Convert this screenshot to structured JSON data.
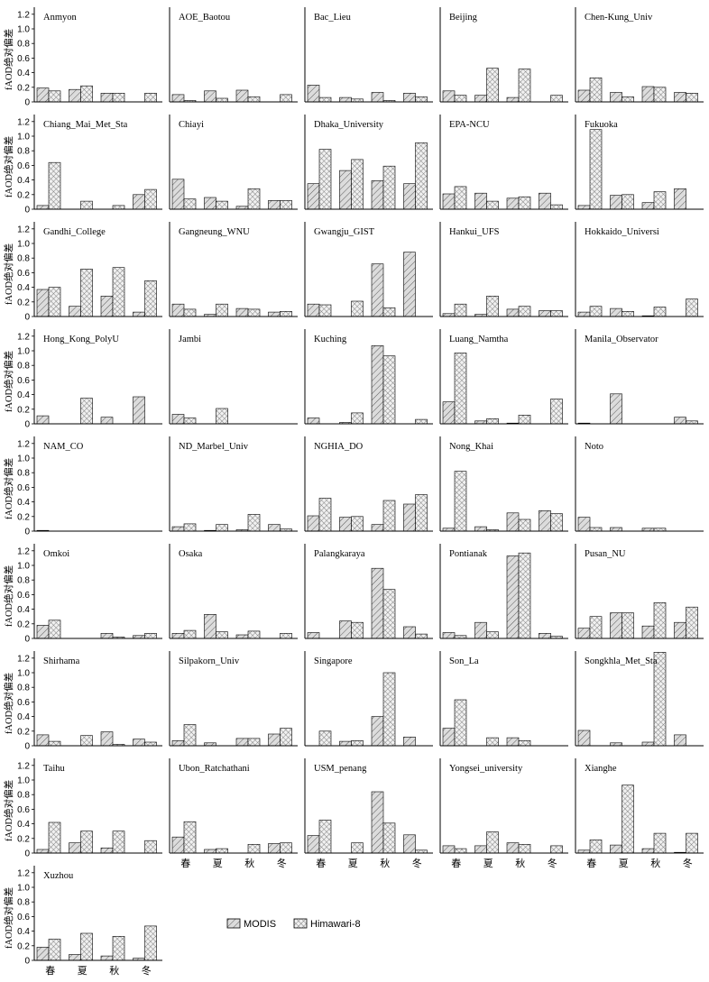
{
  "chart_data": {
    "type": "bar",
    "ylabel": "fAOD绝对偏差",
    "categories": [
      "春",
      "夏",
      "秋",
      "冬"
    ],
    "yticks": [
      "0",
      "0.2",
      "0.4",
      "0.6",
      "0.8",
      "1.0",
      "1.2"
    ],
    "ylim": [
      0,
      1.3
    ],
    "legend": {
      "placement": "bottom-center",
      "series": [
        {
          "name": "MODIS",
          "pattern": "diagonal-light"
        },
        {
          "name": "Himawari-8",
          "pattern": "crosshatch"
        }
      ]
    },
    "panels": [
      {
        "title": "Anmyon",
        "modis": [
          0.19,
          0.17,
          0.12,
          null
        ],
        "himawari": [
          0.15,
          0.22,
          0.12,
          0.12
        ]
      },
      {
        "title": "AOE_Baotou",
        "modis": [
          0.1,
          0.15,
          0.16,
          null
        ],
        "himawari": [
          0.02,
          0.05,
          0.07,
          0.1
        ]
      },
      {
        "title": "Bac_Lieu",
        "modis": [
          0.23,
          0.06,
          0.13,
          0.12
        ],
        "himawari": [
          0.06,
          0.04,
          0.02,
          0.07
        ]
      },
      {
        "title": "Beijing",
        "modis": [
          0.15,
          0.09,
          0.06,
          null
        ],
        "himawari": [
          0.09,
          0.46,
          0.45,
          0.09
        ]
      },
      {
        "title": "Chen-Kung_Univ",
        "modis": [
          0.16,
          0.13,
          0.21,
          0.13
        ],
        "himawari": [
          0.33,
          0.07,
          0.2,
          0.12
        ]
      },
      {
        "title": "Chiang_Mai_Met_Sta",
        "modis": [
          0.05,
          null,
          null,
          0.2
        ],
        "himawari": [
          0.64,
          0.11,
          0.05,
          0.27
        ]
      },
      {
        "title": "Chiayi",
        "modis": [
          0.41,
          0.16,
          0.04,
          0.12
        ],
        "himawari": [
          0.14,
          0.11,
          0.28,
          0.12
        ]
      },
      {
        "title": "Dhaka_University",
        "modis": [
          0.35,
          0.53,
          0.39,
          0.35
        ],
        "himawari": [
          0.82,
          0.68,
          0.59,
          0.91
        ]
      },
      {
        "title": "EPA-NCU",
        "modis": [
          0.21,
          0.22,
          0.15,
          0.22
        ],
        "himawari": [
          0.31,
          0.11,
          0.17,
          0.06
        ]
      },
      {
        "title": "Fukuoka",
        "modis": [
          0.05,
          0.19,
          0.09,
          0.28
        ],
        "himawari": [
          1.09,
          0.2,
          0.24,
          null
        ]
      },
      {
        "title": "Gandhi_College",
        "modis": [
          0.37,
          0.14,
          0.28,
          0.06
        ],
        "himawari": [
          0.4,
          0.65,
          0.67,
          0.49
        ]
      },
      {
        "title": "Gangneung_WNU",
        "modis": [
          0.17,
          0.03,
          0.11,
          0.06
        ],
        "himawari": [
          0.1,
          0.17,
          0.1,
          0.07
        ]
      },
      {
        "title": "Gwangju_GIST",
        "modis": [
          0.17,
          null,
          0.72,
          0.88
        ],
        "himawari": [
          0.16,
          0.21,
          0.12,
          null
        ]
      },
      {
        "title": "Hankui_UFS",
        "modis": [
          0.04,
          0.03,
          0.1,
          0.08
        ],
        "himawari": [
          0.17,
          0.28,
          0.14,
          0.08
        ]
      },
      {
        "title": "Hokkaido_Universi",
        "modis": [
          0.06,
          0.11,
          0.01,
          null
        ],
        "himawari": [
          0.14,
          0.07,
          0.13,
          0.24
        ]
      },
      {
        "title": "Hong_Kong_PolyU",
        "modis": [
          0.11,
          null,
          0.09,
          0.37
        ],
        "himawari": [
          null,
          0.35,
          null,
          null
        ]
      },
      {
        "title": "Jambi",
        "modis": [
          0.13,
          null,
          null,
          null
        ],
        "himawari": [
          0.08,
          0.21,
          null,
          null
        ]
      },
      {
        "title": "Kuching",
        "modis": [
          0.08,
          0.02,
          1.07,
          null
        ],
        "himawari": [
          null,
          0.15,
          0.93,
          0.06
        ]
      },
      {
        "title": "Luang_Namtha",
        "modis": [
          0.3,
          0.04,
          0.01,
          null
        ],
        "himawari": [
          0.97,
          0.07,
          0.12,
          0.34
        ]
      },
      {
        "title": "Manila_Observator",
        "modis": [
          0.01,
          0.41,
          null,
          0.09
        ],
        "himawari": [
          null,
          null,
          null,
          0.04
        ]
      },
      {
        "title": "NAM_CO",
        "modis": [
          0.01,
          null,
          null,
          null
        ],
        "himawari": [
          null,
          null,
          null,
          null
        ]
      },
      {
        "title": "ND_Marbel_Univ",
        "modis": [
          0.06,
          0.01,
          0.02,
          0.09
        ],
        "himawari": [
          0.1,
          0.09,
          0.23,
          0.03
        ]
      },
      {
        "title": "NGHIA_DO",
        "modis": [
          0.21,
          0.19,
          0.09,
          0.37
        ],
        "himawari": [
          0.45,
          0.2,
          0.42,
          0.5
        ]
      },
      {
        "title": "Nong_Khai",
        "modis": [
          0.04,
          0.06,
          0.25,
          0.28
        ],
        "himawari": [
          0.82,
          0.02,
          0.16,
          0.24
        ]
      },
      {
        "title": "Noto",
        "modis": [
          0.19,
          0.05,
          0.04,
          null
        ],
        "himawari": [
          0.05,
          null,
          0.04,
          null
        ]
      },
      {
        "title": "Omkoi",
        "modis": [
          0.18,
          null,
          0.07,
          0.04
        ],
        "himawari": [
          0.25,
          null,
          0.02,
          0.07
        ]
      },
      {
        "title": "Osaka",
        "modis": [
          0.07,
          0.33,
          0.05,
          null
        ],
        "himawari": [
          0.11,
          0.09,
          0.1,
          0.07
        ]
      },
      {
        "title": "Palangkaraya",
        "modis": [
          0.08,
          0.24,
          0.96,
          0.16
        ],
        "himawari": [
          null,
          0.22,
          0.67,
          0.06
        ]
      },
      {
        "title": "Pontianak",
        "modis": [
          0.08,
          0.22,
          1.13,
          0.07
        ],
        "himawari": [
          0.04,
          0.09,
          1.17,
          0.03
        ]
      },
      {
        "title": "Pusan_NU",
        "modis": [
          0.14,
          0.35,
          0.17,
          0.22
        ],
        "himawari": [
          0.3,
          0.35,
          0.49,
          0.43
        ]
      },
      {
        "title": "Shirhama",
        "modis": [
          0.15,
          null,
          0.19,
          0.09
        ],
        "himawari": [
          0.06,
          0.14,
          0.02,
          0.05
        ]
      },
      {
        "title": "Silpakorn_Univ",
        "modis": [
          0.07,
          0.04,
          0.1,
          0.16
        ],
        "himawari": [
          0.29,
          null,
          0.1,
          0.24
        ]
      },
      {
        "title": "Singapore",
        "modis": [
          null,
          0.06,
          0.4,
          0.12
        ],
        "himawari": [
          0.2,
          0.07,
          1.0,
          null
        ]
      },
      {
        "title": "Son_La",
        "modis": [
          0.24,
          null,
          0.11,
          null
        ],
        "himawari": [
          0.63,
          0.11,
          0.07,
          null
        ]
      },
      {
        "title": "Songkhla_Met_Sta",
        "modis": [
          0.21,
          0.04,
          0.05,
          0.15
        ],
        "himawari": [
          null,
          null,
          1.28,
          null
        ]
      },
      {
        "title": "Taihu",
        "modis": [
          0.05,
          0.14,
          0.07,
          null
        ],
        "himawari": [
          0.42,
          0.3,
          0.3,
          0.17
        ]
      },
      {
        "title": "Ubon_Ratchathani",
        "modis": [
          0.22,
          0.05,
          null,
          0.13
        ],
        "himawari": [
          0.43,
          0.06,
          0.12,
          0.14
        ]
      },
      {
        "title": "USM_penang",
        "modis": [
          0.24,
          null,
          0.84,
          0.25
        ],
        "himawari": [
          0.45,
          0.14,
          0.41,
          0.04
        ]
      },
      {
        "title": "Yongsei_university",
        "modis": [
          0.1,
          0.1,
          0.14,
          null
        ],
        "himawari": [
          0.06,
          0.29,
          0.12,
          0.1
        ]
      },
      {
        "title": "Xianghe",
        "modis": [
          0.04,
          0.11,
          0.06,
          0.01
        ],
        "himawari": [
          0.18,
          0.93,
          0.27,
          0.27
        ]
      },
      {
        "title": "Xuzhou",
        "modis": [
          0.18,
          0.08,
          0.06,
          0.03
        ],
        "himawari": [
          0.29,
          0.37,
          0.33,
          0.47
        ]
      }
    ]
  }
}
